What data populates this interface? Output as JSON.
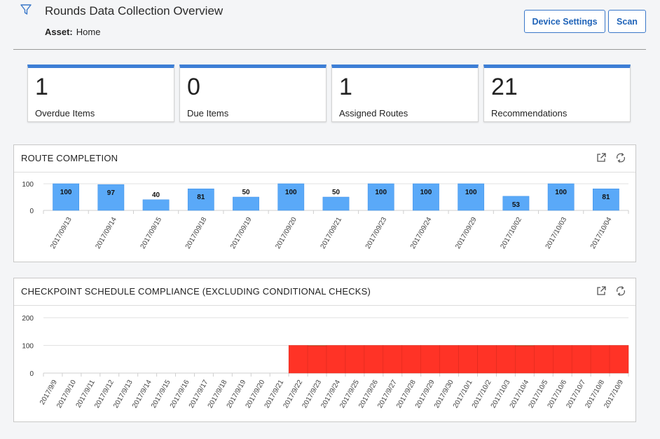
{
  "header": {
    "title": "Rounds Data Collection Overview",
    "asset_label": "Asset:",
    "asset_value": "Home",
    "device_settings_label": "Device Settings",
    "scan_label": "Scan"
  },
  "cards": [
    {
      "value": "1",
      "label": "Overdue Items"
    },
    {
      "value": "0",
      "label": "Due Items"
    },
    {
      "value": "1",
      "label": "Assigned Routes"
    },
    {
      "value": "21",
      "label": "Recommendations"
    }
  ],
  "colors": {
    "accent": "#3d7fd6",
    "bar_blue": "#5aa9f8",
    "bar_red": "#ff3326",
    "bar_green": "#64b23c"
  },
  "route_completion": {
    "title": "ROUTE COMPLETION",
    "chart_data": {
      "type": "bar",
      "categories": [
        "2017/09/13",
        "2017/09/14",
        "2017/09/15",
        "2017/09/18",
        "2017/09/19",
        "2017/09/20",
        "2017/09/21",
        "2017/09/23",
        "2017/09/24",
        "2017/09/29",
        "2017/10/02",
        "2017/10/03",
        "2017/10/04"
      ],
      "values": [
        100,
        97,
        40,
        81,
        50,
        100,
        50,
        100,
        100,
        100,
        53,
        100,
        81
      ],
      "yticks": [
        "100",
        "0"
      ],
      "ylim": [
        0,
        100
      ],
      "data_labels": true
    }
  },
  "checkpoint_compliance": {
    "title": "CHECKPOINT SCHEDULE COMPLIANCE (EXCLUDING CONDITIONAL CHECKS)",
    "chart_data": {
      "type": "bar",
      "stacked": true,
      "categories": [
        "2017/9/9",
        "2017/9/10",
        "2017/9/11",
        "2017/9/12",
        "2017/9/13",
        "2017/9/14",
        "2017/9/15",
        "2017/9/16",
        "2017/9/17",
        "2017/9/18",
        "2017/9/19",
        "2017/9/20",
        "2017/9/21",
        "2017/9/22",
        "2017/9/23",
        "2017/9/24",
        "2017/9/25",
        "2017/9/26",
        "2017/9/27",
        "2017/9/28",
        "2017/9/29",
        "2017/9/30",
        "2017/10/1",
        "2017/10/2",
        "2017/10/3",
        "2017/10/4",
        "2017/10/5",
        "2017/10/6",
        "2017/10/7",
        "2017/10/8",
        "2017/10/9"
      ],
      "series": [
        {
          "color": "#ff3326",
          "values": [
            0,
            0,
            0,
            0,
            0,
            0,
            0,
            0,
            0,
            0,
            0,
            0,
            0,
            100,
            98,
            100,
            100,
            100,
            100,
            100,
            100,
            100,
            100,
            100,
            100,
            98,
            100,
            100,
            100,
            100,
            100
          ]
        },
        {
          "color": "#64b23c",
          "values": [
            0,
            0,
            0,
            0,
            0,
            0,
            0,
            0,
            0,
            0,
            0,
            0,
            0,
            0,
            2,
            0,
            0,
            0,
            0,
            0,
            0,
            0,
            0,
            0,
            0,
            2,
            0,
            0,
            0,
            0,
            0
          ]
        }
      ],
      "yticks": [
        "200",
        "100",
        "0"
      ],
      "ylim": [
        0,
        200
      ]
    }
  }
}
